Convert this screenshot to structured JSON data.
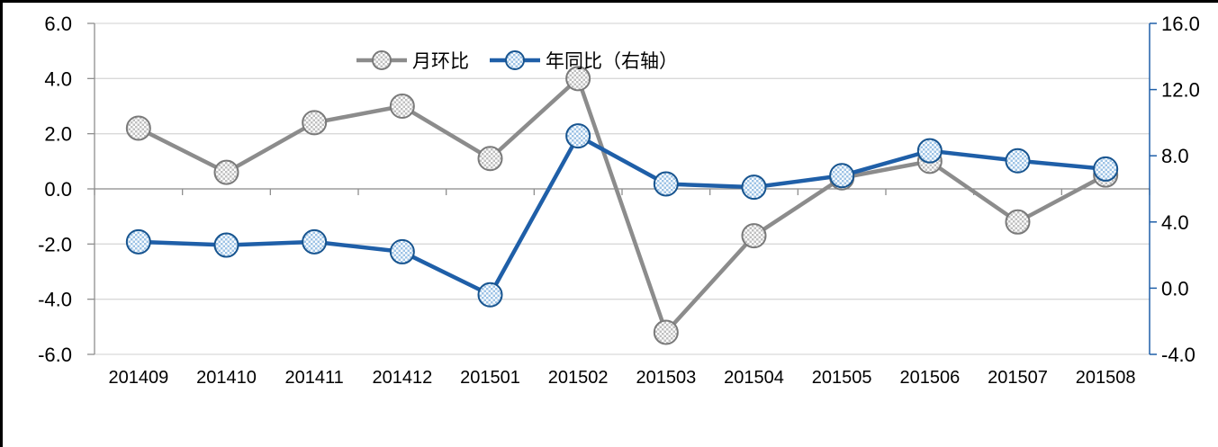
{
  "chart_data": {
    "type": "line",
    "title": "",
    "categories": [
      "201409",
      "201410",
      "201411",
      "201412",
      "201501",
      "201502",
      "201503",
      "201504",
      "201505",
      "201506",
      "201507",
      "201508"
    ],
    "series": [
      {
        "id": "mom",
        "name": "月环比",
        "axis": "left",
        "line_color": "#8C8C8C",
        "marker_border_color": "#7A7A7A",
        "marker_fill_color": "#BFBFBF",
        "values": [
          2.2,
          0.6,
          2.4,
          3.0,
          1.1,
          4.0,
          -5.2,
          -1.7,
          0.4,
          1.0,
          -1.2,
          0.5
        ]
      },
      {
        "id": "yoy",
        "name": "年同比（右轴）",
        "axis": "right",
        "line_color": "#1F5FA8",
        "marker_border_color": "#17548F",
        "marker_fill_color": "#9DC3E6",
        "values": [
          2.8,
          2.6,
          2.8,
          2.2,
          -0.4,
          9.2,
          6.3,
          6.1,
          6.8,
          8.3,
          7.7,
          7.2
        ]
      }
    ],
    "left_axis": {
      "min": -6.0,
      "max": 6.0,
      "step": 2.0,
      "ticks": [
        6,
        4,
        2,
        0,
        -2,
        -4,
        -6
      ],
      "tick_labels": [
        "6.0",
        "4.0",
        "2.0",
        "0.0",
        "-2.0",
        "-4.0",
        "-6.0"
      ]
    },
    "right_axis": {
      "min": -4.0,
      "max": 16.0,
      "step": 4.0,
      "ticks": [
        16,
        12,
        8,
        4,
        0,
        -4
      ],
      "tick_labels": [
        "16.0",
        "12.0",
        "8.0",
        "4.0",
        "0.0",
        "-4.0"
      ]
    },
    "legend_position": "top-center",
    "grid": true,
    "colors": {
      "background": "#FFFFFF",
      "gridline": "#D9D9D9",
      "axis_line": "#8E8E8E",
      "right_axis_line": "#1F5FA8",
      "tick_label": "#000000",
      "screenshot_border": "#000000"
    }
  }
}
